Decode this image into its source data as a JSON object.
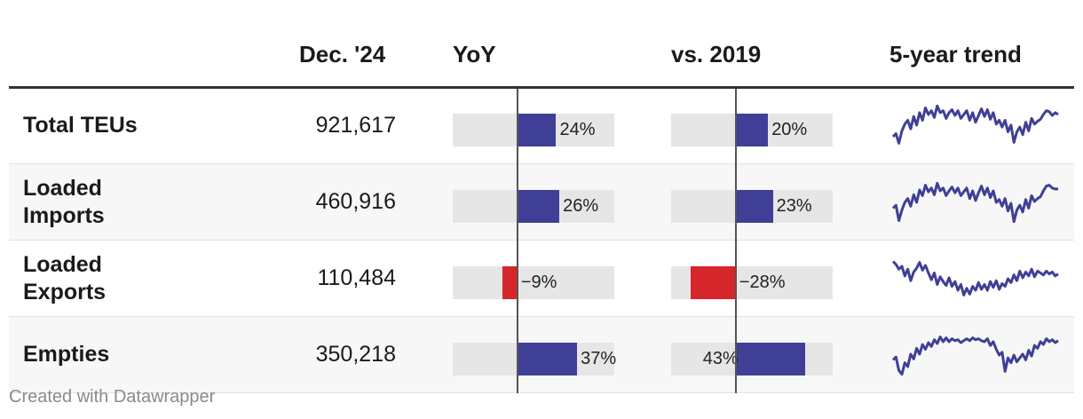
{
  "chart_data": {
    "type": "table",
    "columns": [
      "",
      "Dec. '24",
      "YoY",
      "vs. 2019",
      "5-year trend"
    ],
    "rows": [
      {
        "label": "Total TEUs",
        "value": "921,617",
        "yoy": 24,
        "yoy_label": "24%",
        "vs2019": 20,
        "vs2019_label": "20%",
        "trend": [
          0.72,
          0.66,
          0.86,
          0.6,
          0.46,
          0.38,
          0.56,
          0.3,
          0.48,
          0.22,
          0.38,
          0.12,
          0.26,
          0.18,
          0.32,
          0.08,
          0.22,
          0.18,
          0.34,
          0.22,
          0.16,
          0.28,
          0.18,
          0.34,
          0.26,
          0.18,
          0.38,
          0.22,
          0.42,
          0.28,
          0.14,
          0.3,
          0.16,
          0.36,
          0.22,
          0.46,
          0.38,
          0.52,
          0.38,
          0.62,
          0.48,
          0.84,
          0.62,
          0.52,
          0.68,
          0.42,
          0.6,
          0.34,
          0.46,
          0.4,
          0.36,
          0.26,
          0.18,
          0.2,
          0.28,
          0.22,
          0.26
        ]
      },
      {
        "label": "Loaded Imports",
        "value": "460,916",
        "yoy": 26,
        "yoy_label": "26%",
        "vs2019": 23,
        "vs2019_label": "23%",
        "trend": [
          0.62,
          0.56,
          0.88,
          0.66,
          0.5,
          0.42,
          0.58,
          0.34,
          0.5,
          0.24,
          0.36,
          0.14,
          0.28,
          0.2,
          0.34,
          0.1,
          0.26,
          0.2,
          0.36,
          0.26,
          0.18,
          0.3,
          0.2,
          0.36,
          0.28,
          0.2,
          0.42,
          0.26,
          0.46,
          0.3,
          0.16,
          0.34,
          0.2,
          0.4,
          0.26,
          0.5,
          0.44,
          0.58,
          0.42,
          0.68,
          0.52,
          0.9,
          0.66,
          0.56,
          0.7,
          0.44,
          0.62,
          0.36,
          0.48,
          0.42,
          0.38,
          0.26,
          0.16,
          0.14,
          0.2,
          0.22,
          0.22
        ]
      },
      {
        "label": "Loaded Exports",
        "value": "110,484",
        "yoy": -9,
        "yoy_label": "−9%",
        "vs2019": -28,
        "vs2019_label": "−28%",
        "trend": [
          0.14,
          0.2,
          0.3,
          0.24,
          0.44,
          0.3,
          0.54,
          0.36,
          0.28,
          0.16,
          0.32,
          0.22,
          0.38,
          0.52,
          0.38,
          0.62,
          0.46,
          0.56,
          0.64,
          0.48,
          0.66,
          0.56,
          0.74,
          0.62,
          0.84,
          0.7,
          0.82,
          0.66,
          0.74,
          0.58,
          0.72,
          0.62,
          0.74,
          0.56,
          0.68,
          0.54,
          0.72,
          0.6,
          0.66,
          0.5,
          0.58,
          0.42,
          0.54,
          0.34,
          0.48,
          0.36,
          0.44,
          0.3,
          0.46,
          0.34,
          0.38,
          0.42,
          0.34,
          0.4,
          0.36,
          0.44,
          0.4
        ]
      },
      {
        "label": "Empties",
        "value": "350,218",
        "yoy": 37,
        "yoy_label": "37%",
        "vs2019": 43,
        "vs2019_label": "43%",
        "trend": [
          0.6,
          0.54,
          0.82,
          0.9,
          0.66,
          0.74,
          0.48,
          0.58,
          0.36,
          0.48,
          0.28,
          0.38,
          0.24,
          0.32,
          0.18,
          0.26,
          0.12,
          0.22,
          0.14,
          0.22,
          0.16,
          0.2,
          0.18,
          0.24,
          0.2,
          0.16,
          0.2,
          0.14,
          0.18,
          0.16,
          0.2,
          0.22,
          0.16,
          0.3,
          0.22,
          0.38,
          0.5,
          0.44,
          0.84,
          0.56,
          0.66,
          0.5,
          0.64,
          0.56,
          0.48,
          0.6,
          0.4,
          0.52,
          0.3,
          0.36,
          0.22,
          0.28,
          0.16,
          0.22,
          0.18,
          0.24,
          0.2
        ]
      }
    ],
    "axis_range": [
      -40,
      60
    ]
  },
  "colors": {
    "positive": "#3f3f97",
    "negative": "#d7262b",
    "track": "#e6e6e6",
    "trend": "#3f3f97"
  },
  "footer": "Created with Datawrapper"
}
